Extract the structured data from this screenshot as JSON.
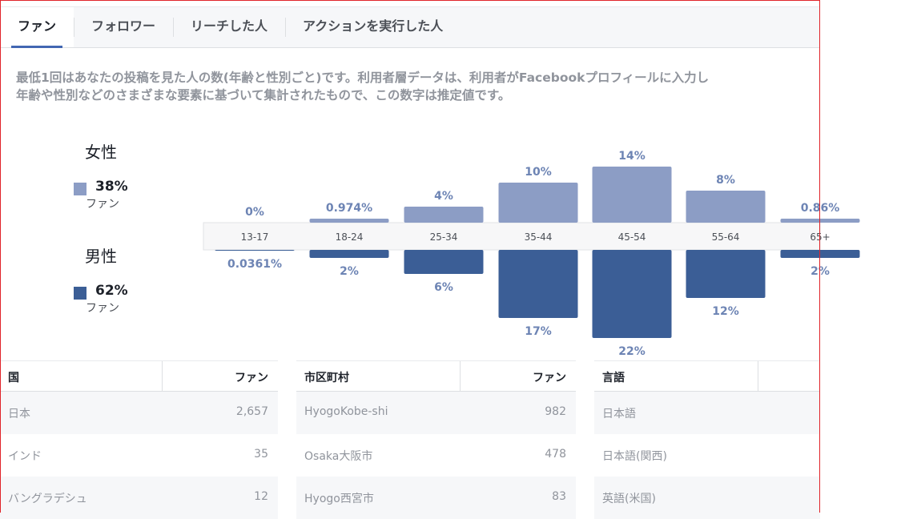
{
  "tabs": [
    {
      "label": "ファン",
      "active": true
    },
    {
      "label": "フォロワー",
      "active": false
    },
    {
      "label": "リーチした人",
      "active": false
    },
    {
      "label": "アクションを実行した人",
      "active": false
    }
  ],
  "description": {
    "line1": "最低1回はあなたの投稿を見た人の数(年齢と性別ごと)です。利用者層データは、利用者がFacebookプロフィールに入力し",
    "line2": "年齢や性別などのさまざまな要素に基づいて集計されたもので、この数字は推定値です。"
  },
  "legend": {
    "female": {
      "title": "女性",
      "pct": "38%",
      "unit": "ファン",
      "color": "#8c9dc5"
    },
    "male": {
      "title": "男性",
      "pct": "62%",
      "unit": "ファン",
      "color": "#3b5e96"
    }
  },
  "chart_data": {
    "type": "bar",
    "categories": [
      "13-17",
      "18-24",
      "25-34",
      "35-44",
      "45-54",
      "55-64",
      "65+"
    ],
    "series": [
      {
        "name": "女性",
        "values": [
          0,
          0.974,
          4,
          10,
          14,
          8,
          0.86
        ],
        "labels": [
          "0%",
          "0.974%",
          "4%",
          "10%",
          "14%",
          "8%",
          "0.86%"
        ],
        "color": "#8c9dc5"
      },
      {
        "name": "男性",
        "values": [
          0.0361,
          2,
          6,
          17,
          22,
          12,
          2
        ],
        "labels": [
          "0.0361%",
          "2%",
          "6%",
          "17%",
          "22%",
          "12%",
          "2%"
        ],
        "color": "#3b5e96"
      }
    ]
  },
  "tables": [
    {
      "header": "国",
      "value_header": "ファン",
      "rows": [
        {
          "name": "日本",
          "value": "2,657"
        },
        {
          "name": "インド",
          "value": "35"
        },
        {
          "name": "バングラデシュ",
          "value": "12"
        }
      ]
    },
    {
      "header": "市区町村",
      "value_header": "ファン",
      "rows": [
        {
          "name": "HyogoKobe-shi",
          "value": "982"
        },
        {
          "name": "Osaka大阪市",
          "value": "478"
        },
        {
          "name": "Hyogo西宮市",
          "value": "83"
        }
      ]
    },
    {
      "header": "言語",
      "value_header": "",
      "rows": [
        {
          "name": "日本語",
          "value": ""
        },
        {
          "name": "日本語(関西)",
          "value": ""
        },
        {
          "name": "英語(米国)",
          "value": ""
        }
      ]
    }
  ]
}
